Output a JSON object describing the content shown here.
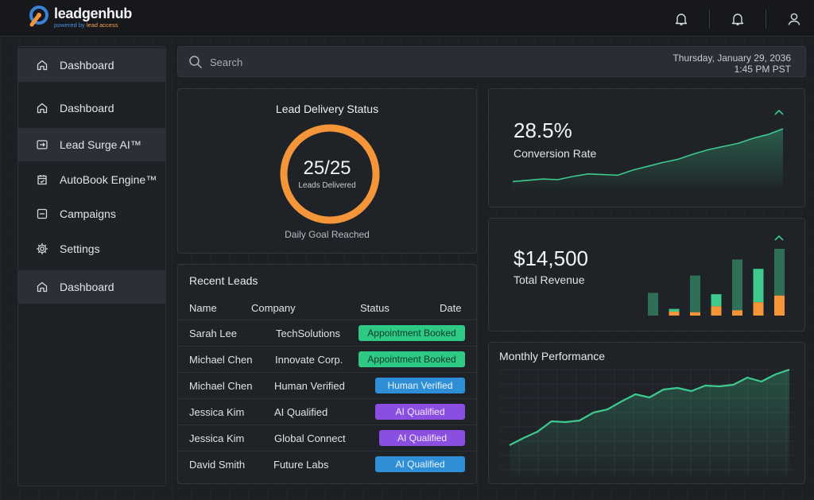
{
  "app": {
    "name": "leadgenhub",
    "tagline_prefix": "powered by",
    "tagline_brand": "lead access"
  },
  "header": {
    "icons": [
      "bell-icon",
      "bell-icon",
      "user-icon"
    ]
  },
  "sidebar": {
    "items": [
      {
        "label": "Dashboard",
        "icon": "home-icon",
        "active": true
      },
      {
        "label": "Dashboard",
        "icon": "home-icon",
        "active": false
      },
      {
        "label": "Lead Surge AI™",
        "icon": "arrow-box-icon",
        "active": true
      },
      {
        "label": "AutoBook Engine™",
        "icon": "calendar-check-icon",
        "active": false
      },
      {
        "label": "Campaigns",
        "icon": "document-icon",
        "active": false
      },
      {
        "label": "Settings",
        "icon": "gear-icon",
        "active": false
      },
      {
        "label": "Dashboard",
        "icon": "home-icon",
        "active": true
      }
    ]
  },
  "search": {
    "placeholder": "Search",
    "date": "Thursday, January 29, 2036",
    "time": "1:45 PM PST"
  },
  "delivery": {
    "title": "Lead Delivery Status",
    "value": "25/25",
    "label": "Leads Delivered",
    "progress": 1.0,
    "footer": "Daily Goal Reached"
  },
  "conversion": {
    "value": "28.5%",
    "label": "Conversion Rate",
    "trend": [
      0.12,
      0.14,
      0.16,
      0.15,
      0.2,
      0.24,
      0.23,
      0.22,
      0.3,
      0.36,
      0.42,
      0.47,
      0.55,
      0.62,
      0.67,
      0.72,
      0.8,
      0.86,
      0.95
    ]
  },
  "revenue": {
    "value": "$14,500",
    "label": "Total Revenue",
    "bars": [
      {
        "green": 0.34,
        "orange": 0
      },
      {
        "green": 0.1,
        "orange": 0.06
      },
      {
        "green": 0.6,
        "orange": 0.05
      },
      {
        "green": 0.32,
        "orange": 0.14
      },
      {
        "green": 0.84,
        "orange": 0.08
      },
      {
        "green": 0.7,
        "orange": 0.2
      },
      {
        "green": 1.0,
        "orange": 0.3
      }
    ]
  },
  "performance": {
    "title": "Monthly Performance",
    "trend": [
      0.05,
      0.14,
      0.22,
      0.35,
      0.34,
      0.36,
      0.46,
      0.5,
      0.6,
      0.69,
      0.65,
      0.75,
      0.77,
      0.73,
      0.8,
      0.79,
      0.81,
      0.9,
      0.85,
      0.94,
      1.0
    ]
  },
  "leads": {
    "title": "Recent Leads",
    "columns": [
      "Name",
      "Company",
      "Status",
      "Date"
    ],
    "rows": [
      {
        "name": "Sarah Lee",
        "company": "TechSolutions",
        "status": "Appointment Booked",
        "type": "booked"
      },
      {
        "name": "Michael Chen",
        "company": "Innovate Corp.",
        "status": "Appointment Booked",
        "type": "booked"
      },
      {
        "name": "Michael Chen",
        "company": "Human Verified",
        "status": "Human Verified",
        "type": "blue"
      },
      {
        "name": "Jessica Kim",
        "company": "AI Qualified",
        "status": "AI Qualified",
        "type": "purple"
      },
      {
        "name": "Jessica Kim",
        "company": "Global Connect",
        "status": "AI Qualified",
        "type": "purple"
      },
      {
        "name": "David Smith",
        "company": "Future Labs",
        "status": "AI Qualified",
        "type": "blue"
      }
    ]
  },
  "colors": {
    "accent_orange": "#f5953a",
    "accent_green": "#3ec98e",
    "badge_booked_bg": "#2ec985",
    "badge_booked_fg": "#0c3b24",
    "badge_blue_bg": "#2f8fd6",
    "badge_purple_bg": "#8a4fe0"
  }
}
